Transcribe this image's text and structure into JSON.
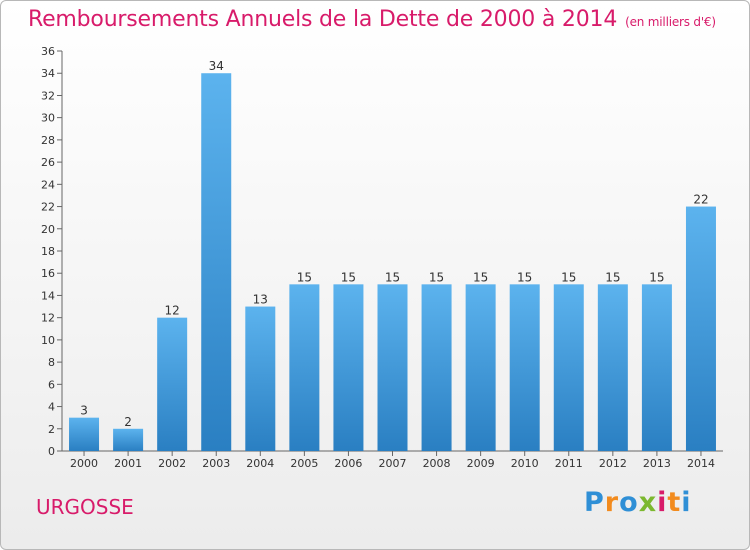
{
  "header": {
    "title": "Remboursements Annuels de la Dette de 2000 à 2014",
    "unit": "(en milliers d'€)"
  },
  "footer": {
    "commune": "URGOSSE",
    "logo_letters": [
      "P",
      "r",
      "o",
      "x",
      "i",
      "t",
      "i"
    ],
    "logo_colors": [
      "#2f8fd6",
      "#f28b1e",
      "#2f8fd6",
      "#7cb82f",
      "#d81b6a",
      "#f28b1e",
      "#2f8fd6"
    ]
  },
  "colors": {
    "title": "#d81b6a",
    "bar_light": "#5cb3ee",
    "bar_dark": "#2a7fc2"
  },
  "chart_data": {
    "type": "bar",
    "categories": [
      "2000",
      "2001",
      "2002",
      "2003",
      "2004",
      "2005",
      "2006",
      "2007",
      "2008",
      "2009",
      "2010",
      "2011",
      "2012",
      "2013",
      "2014"
    ],
    "values": [
      3,
      2,
      12,
      34,
      13,
      15,
      15,
      15,
      15,
      15,
      15,
      15,
      15,
      15,
      22
    ],
    "ylim": [
      0,
      36
    ],
    "yticks": [
      0,
      2,
      4,
      6,
      8,
      10,
      12,
      14,
      16,
      18,
      20,
      22,
      24,
      26,
      28,
      30,
      32,
      34,
      36
    ],
    "grid": false
  }
}
